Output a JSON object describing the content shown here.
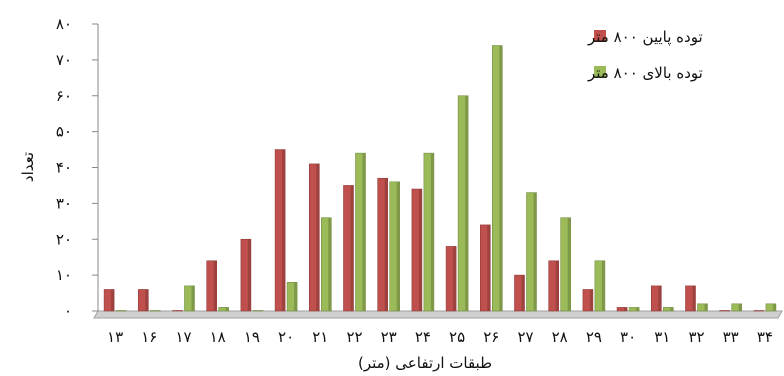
{
  "chart_data": {
    "type": "bar",
    "categories": [
      "۱۳",
      "۱۶",
      "۱۷",
      "۱۸",
      "۱۹",
      "۲۰",
      "۲۱",
      "۲۲",
      "۲۳",
      "۲۴",
      "۲۵",
      "۲۶",
      "۲۷",
      "۲۸",
      "۲۹",
      "۳۰",
      "۳۱",
      "۳۲",
      "۳۳",
      "۳۴"
    ],
    "series": [
      {
        "name": "توده پایین ۸۰۰ متر",
        "color": "#c0504d",
        "values": [
          6,
          6,
          0,
          14,
          20,
          45,
          41,
          35,
          37,
          34,
          18,
          24,
          10,
          14,
          6,
          1,
          7,
          7,
          0,
          0
        ]
      },
      {
        "name": "توده بالای ۸۰۰ متر",
        "color": "#9bbb59",
        "values": [
          0,
          0,
          7,
          1,
          0,
          8,
          26,
          44,
          36,
          44,
          60,
          74,
          33,
          26,
          14,
          1,
          1,
          2,
          2,
          2
        ]
      }
    ],
    "xlabel": "طبقات ارتفاعی (متر)",
    "ylabel": "تعداد",
    "ylim": [
      0,
      80
    ],
    "yticks": [
      0,
      10,
      20,
      30,
      40,
      50,
      60,
      70,
      80
    ],
    "ytick_labels": [
      "۰",
      "۱۰",
      "۲۰",
      "۳۰",
      "۴۰",
      "۵۰",
      "۶۰",
      "۷۰",
      "۸۰"
    ],
    "legend_position": "top-right",
    "grid": false
  }
}
